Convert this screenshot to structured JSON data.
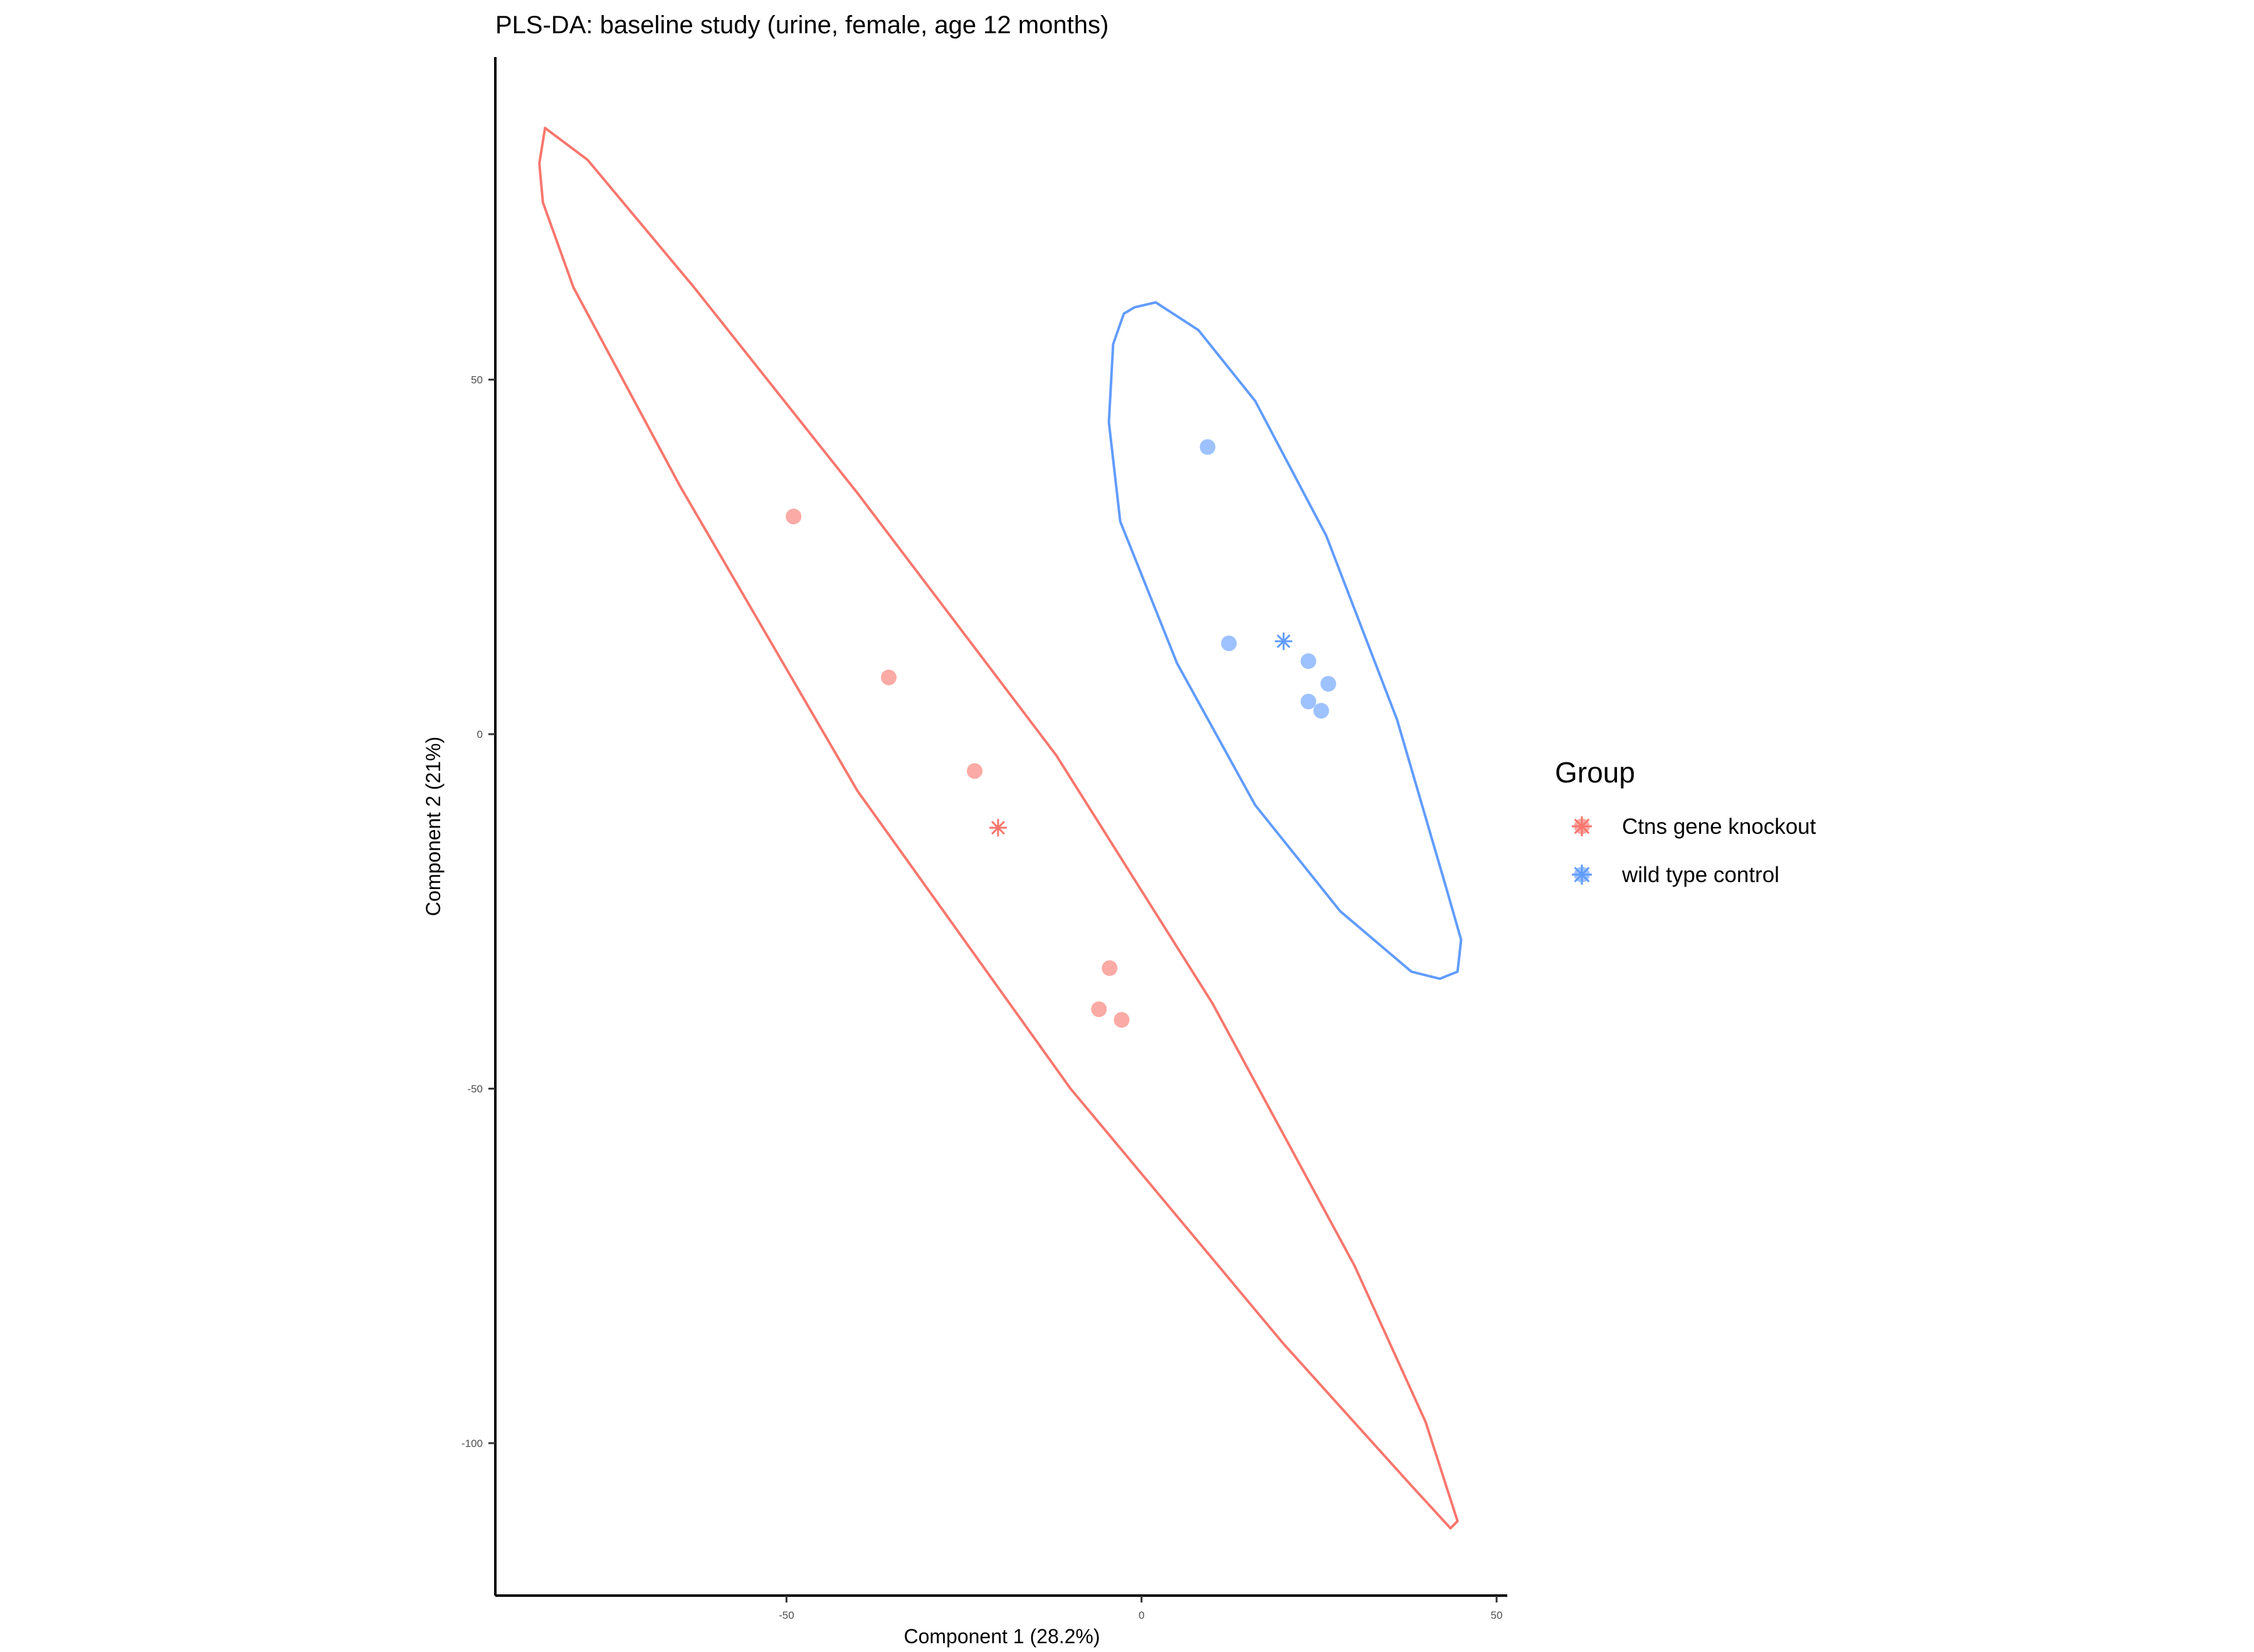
{
  "chart_data": {
    "type": "scatter",
    "title": "PLS-DA: baseline study (urine, female, age 12 months)",
    "xlabel": "Component 1 (28.2%)",
    "ylabel": "Component 2 (21%)",
    "xlim": [
      -91,
      51.5
    ],
    "ylim": [
      -121.5,
      95.5
    ],
    "xticks": [
      -50,
      0,
      50
    ],
    "yticks": [
      50,
      0,
      -50,
      -100
    ],
    "xtick_labels": [
      "-50",
      "0",
      "50"
    ],
    "ytick_labels": [
      "50",
      "0",
      "-50",
      "-100"
    ],
    "grid": false,
    "legend": {
      "title": "Group",
      "placement": "right",
      "entries": [
        "Ctns gene knockout",
        "wild type control"
      ]
    },
    "series": [
      {
        "name": "Ctns gene knockout",
        "color": "#F8766D",
        "points": [
          {
            "x": -49,
            "y": 30.7
          },
          {
            "x": -35.6,
            "y": 8
          },
          {
            "x": -23.5,
            "y": -5.2
          },
          {
            "x": -4.5,
            "y": -33
          },
          {
            "x": -6,
            "y": -38.8
          },
          {
            "x": -2.8,
            "y": -40.3
          }
        ],
        "centroid": {
          "x": -20.2,
          "y": -13.2
        },
        "ellipse": [
          {
            "x": -84,
            "y": 85.5
          },
          {
            "x": -78,
            "y": 81
          },
          {
            "x": -63,
            "y": 63
          },
          {
            "x": -40,
            "y": 34
          },
          {
            "x": -12,
            "y": -3
          },
          {
            "x": 10,
            "y": -38
          },
          {
            "x": 30,
            "y": -75
          },
          {
            "x": 40,
            "y": -97
          },
          {
            "x": 44.5,
            "y": -111
          },
          {
            "x": 43.5,
            "y": -112
          },
          {
            "x": 38,
            "y": -106
          },
          {
            "x": 20,
            "y": -86
          },
          {
            "x": -10,
            "y": -50
          },
          {
            "x": -40,
            "y": -8
          },
          {
            "x": -65,
            "y": 35
          },
          {
            "x": -80,
            "y": 63
          },
          {
            "x": -84.3,
            "y": 75
          },
          {
            "x": -84.8,
            "y": 80.5
          }
        ]
      },
      {
        "name": "wild type control",
        "color": "#619CFF",
        "points": [
          {
            "x": 9.3,
            "y": 40.5
          },
          {
            "x": 12.3,
            "y": 12.8
          },
          {
            "x": 23.5,
            "y": 10.3
          },
          {
            "x": 26.3,
            "y": 7.1
          },
          {
            "x": 23.5,
            "y": 4.6
          },
          {
            "x": 25.3,
            "y": 3.3
          }
        ],
        "centroid": {
          "x": 20,
          "y": 13.1
        },
        "ellipse": [
          {
            "x": -1,
            "y": 60.2
          },
          {
            "x": 2,
            "y": 60.9
          },
          {
            "x": 8,
            "y": 57
          },
          {
            "x": 16,
            "y": 47
          },
          {
            "x": 26,
            "y": 28
          },
          {
            "x": 36,
            "y": 2
          },
          {
            "x": 43,
            "y": -22
          },
          {
            "x": 45,
            "y": -29
          },
          {
            "x": 44.5,
            "y": -33.5
          },
          {
            "x": 42,
            "y": -34.5
          },
          {
            "x": 38,
            "y": -33.5
          },
          {
            "x": 28,
            "y": -25
          },
          {
            "x": 16,
            "y": -10
          },
          {
            "x": 5,
            "y": 10
          },
          {
            "x": -3,
            "y": 30
          },
          {
            "x": -4.6,
            "y": 44
          },
          {
            "x": -4,
            "y": 55
          },
          {
            "x": -2.5,
            "y": 59.3
          }
        ]
      }
    ]
  }
}
